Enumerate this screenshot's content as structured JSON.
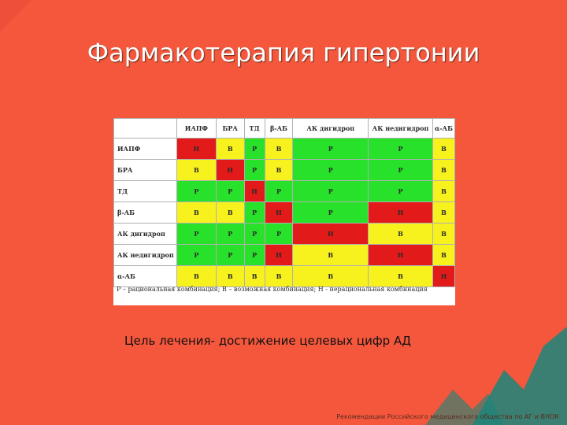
{
  "title": "Фармакотерапия гипертонии",
  "table": {
    "columns": [
      "ИАПФ",
      "БРА",
      "ТД",
      "β-АБ",
      "АК дигидроп",
      "АК недигидроп",
      "α-АБ"
    ],
    "rows": [
      {
        "label": "ИАПФ",
        "cells": [
          "Н",
          "В",
          "Р",
          "В",
          "Р",
          "Р",
          "В"
        ],
        "colors": [
          "N",
          "V",
          "R",
          "V",
          "R",
          "R",
          "V"
        ]
      },
      {
        "label": "БРА",
        "cells": [
          "В",
          "Н",
          "Р",
          "В",
          "Р",
          "Р",
          "В"
        ],
        "colors": [
          "V",
          "N",
          "R",
          "V",
          "R",
          "R",
          "V"
        ]
      },
      {
        "label": "ТД",
        "cells": [
          "Р",
          "Р",
          "Н",
          "Р",
          "Р",
          "Р",
          "В"
        ],
        "colors": [
          "R",
          "R",
          "N",
          "R",
          "R",
          "R",
          "V"
        ]
      },
      {
        "label": "β-АБ",
        "cells": [
          "В",
          "В",
          "Р",
          "Н",
          "Р",
          "Н",
          "В"
        ],
        "colors": [
          "V",
          "V",
          "R",
          "N",
          "R",
          "N",
          "V"
        ]
      },
      {
        "label": "АК дигидроп",
        "cells": [
          "Р",
          "Р",
          "Р",
          "Р",
          "Н",
          "В",
          "В"
        ],
        "colors": [
          "R",
          "R",
          "R",
          "R",
          "N",
          "V",
          "V"
        ]
      },
      {
        "label": "АК недигидроп",
        "cells": [
          "Р",
          "Р",
          "Р",
          "Н",
          "В",
          "Н",
          "В"
        ],
        "colors": [
          "R",
          "R",
          "R",
          "N",
          "V",
          "N",
          "V"
        ]
      },
      {
        "label": "α-АБ",
        "cells": [
          "В",
          "В",
          "В",
          "В",
          "В",
          "В",
          "Н"
        ],
        "colors": [
          "V",
          "V",
          "V",
          "V",
          "V",
          "V",
          "N"
        ]
      }
    ],
    "legend": "Р – рациональная комбинация; В – возможная комбинация; Н - нерациональная комбинация"
  },
  "goal_text": "Цель лечения- достижение целевых цифр АД",
  "source_text": "Рекомендации Российского медицинского общества по АГ и ВНОК",
  "colors": {
    "background": "#f4573c",
    "rational": "#28e12a",
    "possible": "#f7f21e",
    "irrational": "#e21a1a"
  }
}
